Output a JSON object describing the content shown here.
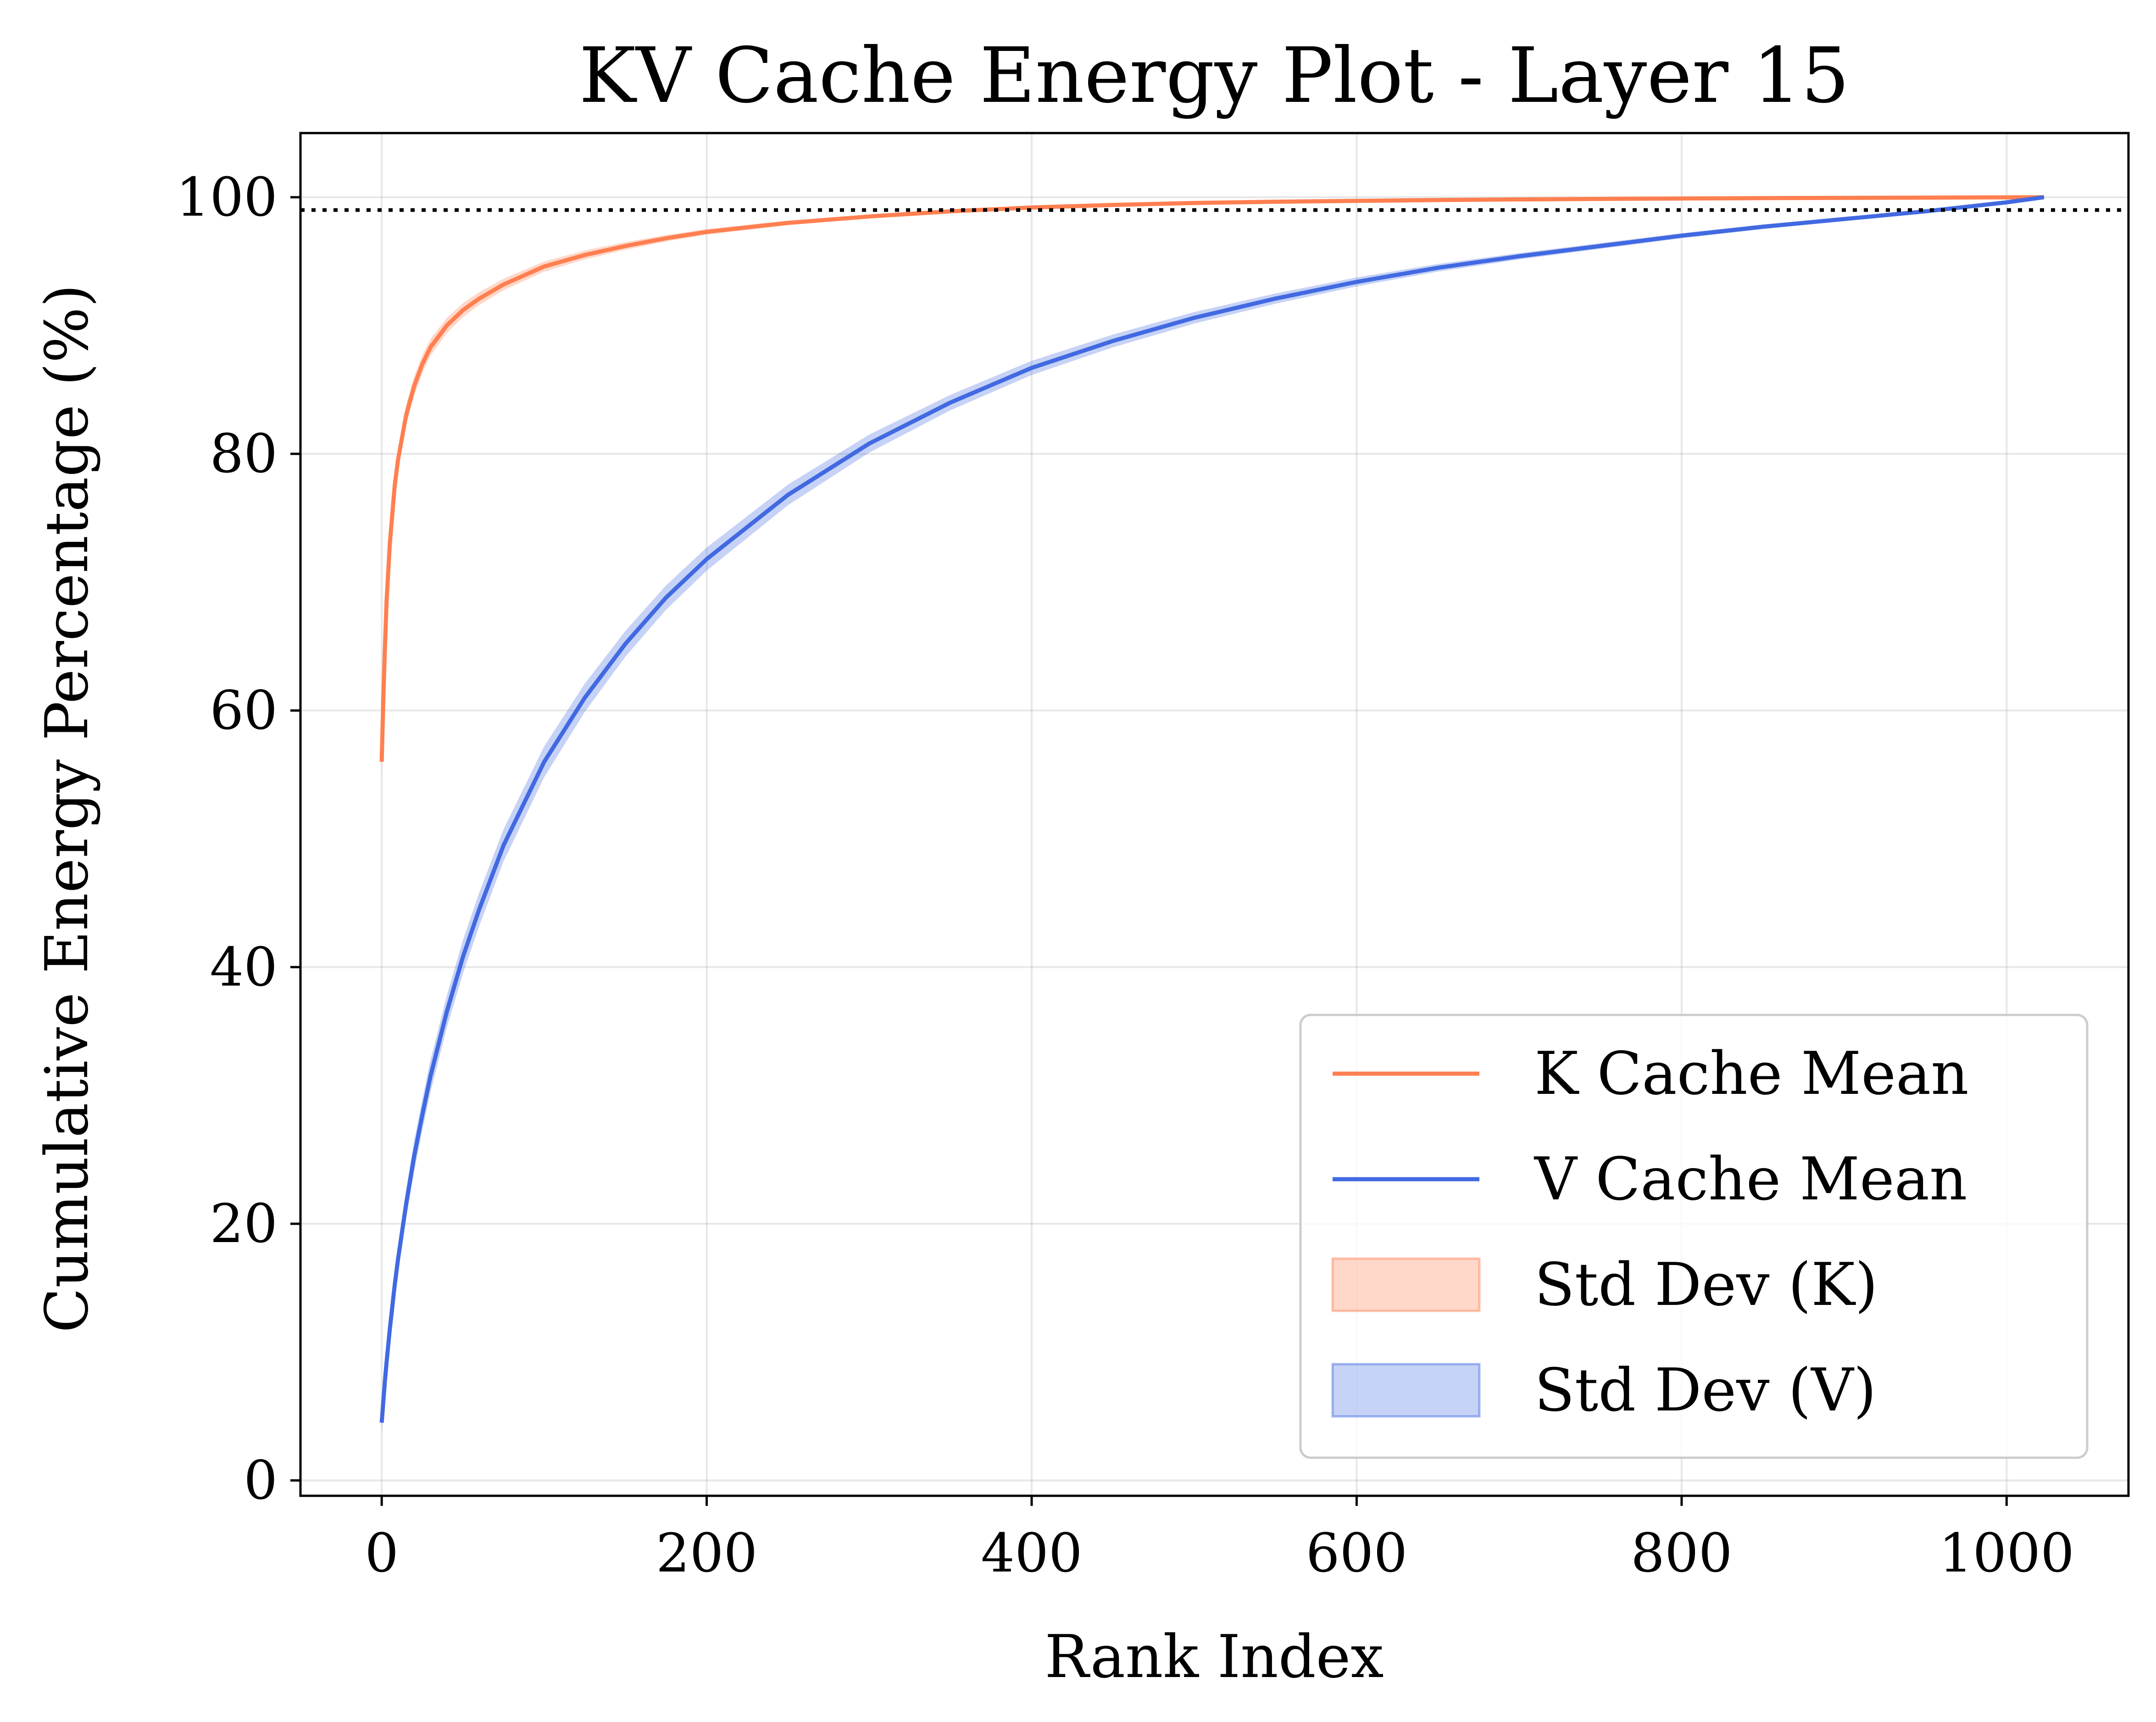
{
  "chart_data": {
    "type": "line",
    "title": "KV Cache Energy Plot - Layer 15",
    "xlabel": "Rank Index",
    "ylabel": "Cumulative Energy Percentage (%)",
    "xlim": [
      -50,
      1075
    ],
    "ylim": [
      -1.2,
      105
    ],
    "xticks": [
      0,
      200,
      400,
      600,
      800,
      1000
    ],
    "yticks": [
      0,
      20,
      40,
      60,
      80,
      100
    ],
    "xtick_labels": [
      "0",
      "200",
      "400",
      "600",
      "800",
      "1000"
    ],
    "ytick_labels": [
      "0",
      "20",
      "40",
      "60",
      "80",
      "100"
    ],
    "grid": true,
    "legend_position": "lower-right",
    "reference_line": {
      "y": 99,
      "style": "dotted",
      "color": "#000000"
    },
    "x": [
      0,
      1,
      2,
      3,
      5,
      8,
      10,
      15,
      20,
      25,
      30,
      40,
      50,
      60,
      75,
      100,
      125,
      150,
      175,
      200,
      250,
      300,
      350,
      400,
      450,
      500,
      550,
      600,
      650,
      700,
      750,
      800,
      850,
      900,
      950,
      1000,
      1023
    ],
    "series": [
      {
        "name": "K Cache Mean",
        "color": "#ff7f50",
        "values": [
          56.0,
          61.0,
          65.0,
          68.5,
          73.0,
          77.5,
          79.5,
          83.0,
          85.3,
          87.0,
          88.3,
          90.0,
          91.2,
          92.1,
          93.2,
          94.6,
          95.5,
          96.2,
          96.8,
          97.3,
          98.0,
          98.5,
          98.9,
          99.2,
          99.4,
          99.55,
          99.65,
          99.72,
          99.78,
          99.83,
          99.87,
          99.9,
          99.93,
          99.95,
          99.97,
          99.99,
          100.0
        ],
        "std": [
          1.5,
          1.3,
          1.2,
          1.1,
          1.0,
          0.9,
          0.85,
          0.8,
          0.75,
          0.7,
          0.65,
          0.6,
          0.55,
          0.5,
          0.45,
          0.4,
          0.35,
          0.3,
          0.25,
          0.22,
          0.18,
          0.15,
          0.12,
          0.1,
          0.08,
          0.07,
          0.06,
          0.05,
          0.04,
          0.03,
          0.03,
          0.02,
          0.02,
          0.01,
          0.01,
          0.0,
          0.0
        ]
      },
      {
        "name": "V Cache Mean",
        "color": "#4169e1",
        "values": [
          4.5,
          6.2,
          7.8,
          9.2,
          11.8,
          15.2,
          17.2,
          21.5,
          25.3,
          28.5,
          31.5,
          36.5,
          40.8,
          44.5,
          49.5,
          56.0,
          61.0,
          65.2,
          68.8,
          71.8,
          76.8,
          80.8,
          84.0,
          86.7,
          88.8,
          90.6,
          92.1,
          93.4,
          94.5,
          95.4,
          96.2,
          97.0,
          97.7,
          98.3,
          98.9,
          99.6,
          100.0
        ],
        "std": [
          0.8,
          0.85,
          0.9,
          0.95,
          1.0,
          1.05,
          1.1,
          1.15,
          1.2,
          1.2,
          1.25,
          1.25,
          1.3,
          1.3,
          1.25,
          1.2,
          1.1,
          1.0,
          0.95,
          0.9,
          0.8,
          0.7,
          0.6,
          0.55,
          0.5,
          0.45,
          0.4,
          0.35,
          0.3,
          0.25,
          0.22,
          0.2,
          0.18,
          0.15,
          0.1,
          0.05,
          0.0
        ]
      }
    ],
    "bands": [
      {
        "name": "Std Dev (K)",
        "of": "K Cache Mean",
        "color": "#ff7f50",
        "opacity": 0.3
      },
      {
        "name": "Std Dev (V)",
        "of": "V Cache Mean",
        "color": "#4169e1",
        "opacity": 0.3
      }
    ],
    "legend": [
      "K Cache Mean",
      "V Cache Mean",
      "Std Dev (K)",
      "Std Dev (V)"
    ]
  }
}
